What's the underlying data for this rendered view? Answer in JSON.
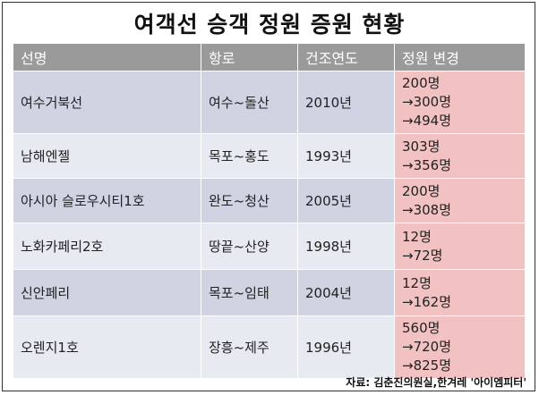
{
  "title": "여객선 승객 정원 증원 현황",
  "headers": [
    "선명",
    "항로",
    "건조연도",
    "정원 변경"
  ],
  "rows": [
    {
      "name": "여수거북선",
      "route": "여수~돌산",
      "year": "2010년",
      "change": [
        "200명",
        "→300명",
        "→494명"
      ]
    },
    {
      "name": "남해엔젤",
      "route": "목포~홍도",
      "year": "1993년",
      "change": [
        "303명",
        "→356명"
      ]
    },
    {
      "name": "아시아 슬로우시티1호",
      "route": "완도~청산",
      "year": "2005년",
      "change": [
        "200명",
        "→308명"
      ]
    },
    {
      "name": "노화카페리2호",
      "route": "땅끝~산양",
      "year": "1998년",
      "change": [
        "12명",
        "→72명"
      ]
    },
    {
      "name": "신안페리",
      "route": "목포~임태",
      "year": "2004년",
      "change": [
        "12명",
        "→162명"
      ]
    },
    {
      "name": "오렌지1호",
      "route": "장흥~제주",
      "year": "1996년",
      "change": [
        "560명",
        "→720명",
        "→825명"
      ]
    }
  ],
  "source": "자료: 김춘진의원실,한겨레 '아이엠피터'",
  "colors": {
    "header": "#9a9a9a",
    "row_dark": "#cfd3e2",
    "row_light": "#e8eaf1",
    "change": "#f2c1c1"
  }
}
